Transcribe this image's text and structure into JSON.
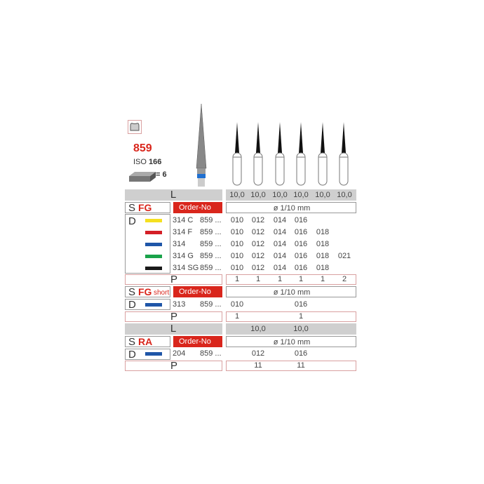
{
  "header": {
    "model": "859",
    "iso_label": "ISO",
    "iso_value": "166",
    "pack_qty": "= 6",
    "icons": [
      "tooth-crown-icon",
      "pack-box-icon"
    ]
  },
  "colors": {
    "accent": "#d9261c",
    "yellow": "#f5e020",
    "red": "#d41f26",
    "blue": "#1f56a8",
    "green": "#1aa34a",
    "black": "#1a1a1a"
  },
  "fg": {
    "l_label": "L",
    "lengths": [
      "10,0",
      "10,0",
      "10,0",
      "10,0",
      "10,0",
      "10,0"
    ],
    "s_label": "S",
    "shank": "FG",
    "order_label": "Order-No",
    "diam_label": "ø 1/10 mm",
    "d_label": "D",
    "rows": [
      {
        "code": "314 C",
        "ref": "859 ...",
        "color": "yellow",
        "sizes": [
          "010",
          "012",
          "014",
          "016",
          "",
          ""
        ]
      },
      {
        "code": "314 F",
        "ref": "859 ...",
        "color": "red",
        "sizes": [
          "010",
          "012",
          "014",
          "016",
          "018",
          ""
        ]
      },
      {
        "code": "314",
        "ref": "859 ...",
        "color": "blue",
        "sizes": [
          "010",
          "012",
          "014",
          "016",
          "018",
          ""
        ]
      },
      {
        "code": "314 G",
        "ref": "859 ...",
        "color": "green",
        "sizes": [
          "010",
          "012",
          "014",
          "016",
          "018",
          "021"
        ]
      },
      {
        "code": "314 SG",
        "ref": "859 ...",
        "color": "black",
        "sizes": [
          "010",
          "012",
          "014",
          "016",
          "018",
          ""
        ]
      }
    ],
    "p_label": "P",
    "packs": [
      "1",
      "1",
      "1",
      "1",
      "1",
      "2"
    ]
  },
  "fgshort": {
    "s_label": "S",
    "shank": "FG",
    "shank_suffix": "short",
    "order_label": "Order-No",
    "diam_label": "ø 1/10 mm",
    "d_label": "D",
    "row": {
      "code": "313",
      "ref": "859 ...",
      "color": "blue",
      "sizes": [
        "010",
        "",
        "",
        "016",
        "",
        ""
      ]
    },
    "p_label": "P",
    "packs": [
      "1",
      "",
      "",
      "1",
      "",
      ""
    ]
  },
  "ra": {
    "l_label": "L",
    "lengths": [
      "",
      "10,0",
      "",
      "10,0",
      "",
      ""
    ],
    "s_label": "S",
    "shank": "RA",
    "order_label": "Order-No",
    "diam_label": "ø 1/10 mm",
    "d_label": "D",
    "row": {
      "code": "204",
      "ref": "859 ...",
      "color": "blue",
      "sizes": [
        "",
        "012",
        "",
        "016",
        "",
        ""
      ]
    },
    "p_label": "P",
    "packs": [
      "",
      "11",
      "",
      "11",
      "",
      ""
    ]
  }
}
